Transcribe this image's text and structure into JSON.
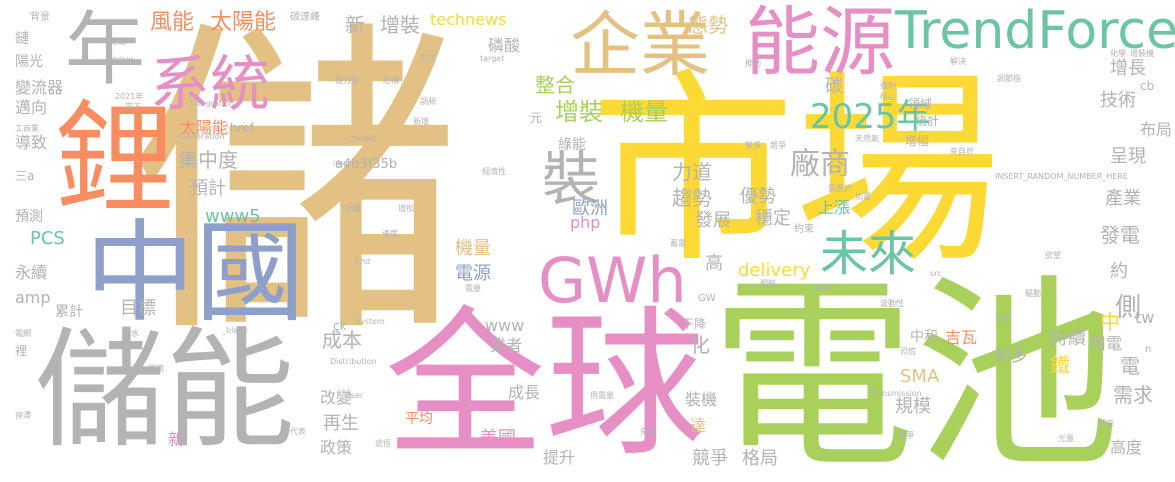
{
  "palette": {
    "tan": "#e3c185",
    "yellow": "#fcd935",
    "green": "#a8d05a",
    "pink": "#e58fc5",
    "gray": "#b3b3b3",
    "orange": "#f98d62",
    "blue": "#8ea0c9",
    "teal": "#6bc4a4"
  },
  "words": {
    "w01": "儲",
    "w02": "市場",
    "w03": "電池",
    "w04": "全球",
    "w05": "儲能",
    "w06": "鋰",
    "w07": "中國",
    "w08": "能源",
    "w09": "企業",
    "w10": "年",
    "w11": "系統",
    "w12": "TrendForce",
    "w13": "GWh",
    "w14": "裝",
    "w15": "未來",
    "w16": "2025年",
    "w17": "增裝",
    "w18": "機量",
    "w19": "廠商",
    "w20": "太陽能",
    "w21": "風能",
    "w22": "新",
    "w23": "增裝",
    "w24": "technews",
    "w25": "態勢",
    "w26": "磷酸",
    "w27": "整合",
    "w28": "碳",
    "w29": "增長",
    "w30": "技術",
    "w31": "布局",
    "w32": "呈現",
    "w33": "集中度",
    "w34": "預計",
    "w35": "力道",
    "w36": "趨勢",
    "w37": "優勢",
    "w38": "穩定",
    "w39": "發展",
    "w40": "歐洲",
    "w41": "php",
    "w42": "上漲",
    "w43": "產業",
    "w44": "發電",
    "w45": "側",
    "w46": "電源",
    "w47": "機量",
    "w48": "delivery",
    "w49": "約",
    "w50": "高",
    "w51": "www5",
    "w52": "PCS",
    "w53": "永續",
    "w54": "amp",
    "w55": "累計",
    "w56": "目標",
    "w57": "www",
    "w58": "持續",
    "w59": "中",
    "w60": "tw",
    "w61": "成本",
    "w62": "業者",
    "w63": "化",
    "w64": "電",
    "w65": "用電",
    "w66": "SMA",
    "w67": "利多",
    "w68": "吉瓦",
    "w69": "中和",
    "w70": "鐵",
    "w71": "改變",
    "w72": "成長",
    "w73": "裝機",
    "w74": "規模",
    "w75": "需求",
    "w76": "再生",
    "w77": "平均",
    "w78": "達",
    "w79": "美國",
    "w80": "政策",
    "w81": "提升",
    "w82": "競爭",
    "w83": "格局",
    "w84": "高度",
    "w85": "新",
    "w86": "太陽能",
    "w87": "導致",
    "w88": "邁向",
    "w89": "變流器",
    "w90": "陽光",
    "w91": "鏈",
    "w92": "背景",
    "w93": "碳達峰",
    "w94": "a4b3f35b",
    "w95": "cb",
    "w96": "領域",
    "w97": "統計",
    "w98": "增幅",
    "w99": "綠能",
    "w100": "元",
    "w101": "預測",
    "w102": "三a",
    "w103": "href",
    "w104": "ck",
    "w105": "GW",
    "w106": "下降",
    "w107": "約束",
    "w108": "蓄電",
    "w109": "配售",
    "w110": "Integration",
    "w111": "Generation",
    "w112": "Distribution",
    "w113": "System",
    "w114": "Transmission",
    "w115": "INSERT_RANDOM_NUMBER_HERE",
    "w116": "target",
    "w117": "_blank",
    "w118": "zoneid",
    "w119": "img",
    "w120": "User",
    "w121": "End",
    "w122": "src",
    "w123": "n",
    "w124": "光量",
    "w125": "機力量",
    "w126": "結構",
    "w127": "形式",
    "w128": "調節指",
    "w129": "強制",
    "w130": "核心",
    "w131": "化學",
    "w132": "增裝機",
    "w133": "經濟性",
    "w134": "調峰",
    "w135": "增加",
    "w136": "調頻",
    "w137": "新增",
    "w138": "受惠於",
    "w139": "加重",
    "w140": "飛速",
    "w141": "驅動",
    "w142": "欲望",
    "w143": "排序",
    "w144": "恐慌",
    "w145": "戰爭",
    "w146": "電量",
    "w147": "相較",
    "w148": "突破",
    "w149": "推動",
    "w150": "停滯",
    "w151": "代表",
    "w152": "途徑",
    "w153": "依賴",
    "w154": "抽水",
    "w155": "電網",
    "w156": "裡",
    "w157": "間歇性",
    "w158": "確定",
    "w159": "波動性",
    "w160": "天然氣",
    "w161": "競爭",
    "w162": "2021年",
    "w163": "定下",
    "w164": "工商業",
    "w165": "來自於",
    "w166": "用電量",
    "w167": "緊張",
    "w168": "解決",
    "w169": "速度",
    "w170": "迎來"
  }
}
